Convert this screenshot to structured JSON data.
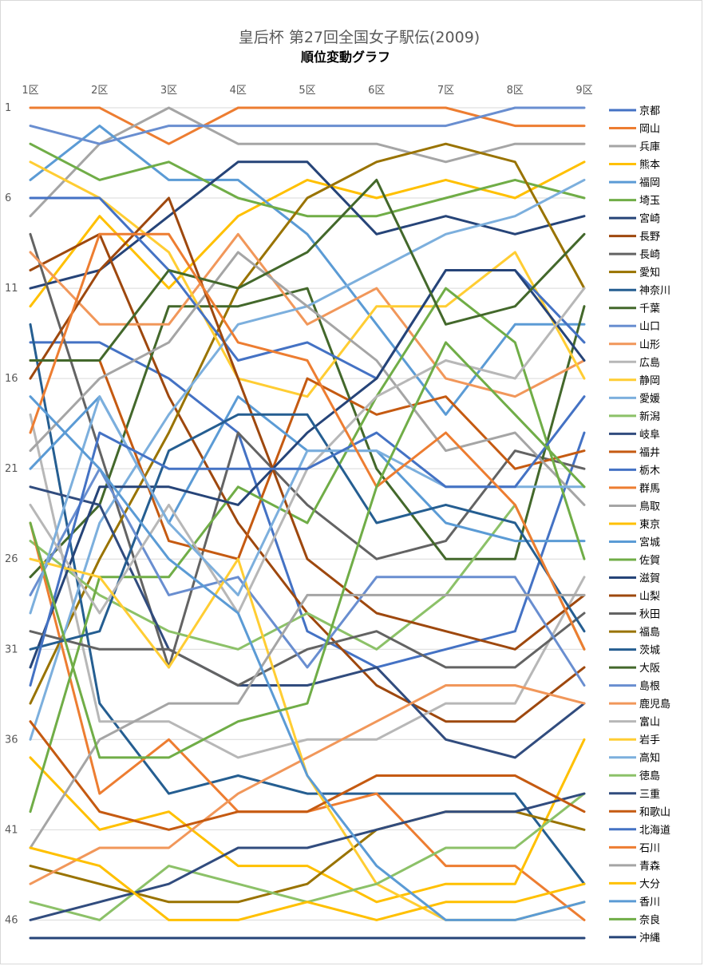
{
  "colors": [
    "#4472C4",
    "#ED7D31",
    "#A5A5A5",
    "#FFC000",
    "#5B9BD5",
    "#70AD47",
    "#264478",
    "#9E480E",
    "#636363",
    "#997300",
    "#255E91",
    "#43682B",
    "#698ED0",
    "#F1975A",
    "#B7B7B7",
    "#FFCD33",
    "#7CAFDD",
    "#8CC168",
    "#314C7E",
    "#C55A11"
  ],
  "chart_data": {
    "type": "line",
    "title": "皇后杯 第27回全国女子駅伝(2009)",
    "subtitle": "順位変動グラフ",
    "categories": [
      "1区",
      "2区",
      "3区",
      "4区",
      "5区",
      "6区",
      "7区",
      "8区",
      "9区"
    ],
    "y_ticks": [
      1,
      6,
      11,
      16,
      21,
      26,
      31,
      36,
      41,
      46
    ],
    "ylim": [
      1,
      47
    ],
    "y_reversed": true,
    "grid": true,
    "legend_position": "right",
    "series": [
      {
        "name": "京都",
        "values": [
          14,
          14,
          16,
          19,
          30,
          32,
          31,
          30,
          19
        ]
      },
      {
        "name": "岡山",
        "values": [
          1,
          1,
          3,
          1,
          1,
          1,
          1,
          2,
          2
        ]
      },
      {
        "name": "兵庫",
        "values": [
          7,
          3,
          1,
          3,
          3,
          3,
          4,
          3,
          3
        ]
      },
      {
        "name": "熊本",
        "values": [
          12,
          7,
          11,
          7,
          5,
          6,
          5,
          6,
          4
        ]
      },
      {
        "name": "福岡",
        "values": [
          5,
          2,
          5,
          5,
          8,
          13,
          18,
          13,
          13
        ]
      },
      {
        "name": "埼玉",
        "values": [
          3,
          5,
          4,
          6,
          7,
          7,
          6,
          5,
          6
        ]
      },
      {
        "name": "宮崎",
        "values": [
          11,
          10,
          7,
          4,
          4,
          8,
          7,
          8,
          7
        ]
      },
      {
        "name": "長野",
        "values": [
          10,
          8,
          17,
          24,
          29,
          33,
          35,
          35,
          32
        ]
      },
      {
        "name": "長崎",
        "values": [
          8,
          20,
          32,
          19,
          23,
          26,
          25,
          20,
          21
        ]
      },
      {
        "name": "愛知",
        "values": [
          34,
          26,
          19,
          11,
          6,
          4,
          3,
          4,
          11
        ]
      },
      {
        "name": "神奈川",
        "values": [
          13,
          34,
          39,
          38,
          39,
          39,
          39,
          39,
          44
        ]
      },
      {
        "name": "千葉",
        "values": [
          27,
          23,
          12,
          12,
          11,
          21,
          26,
          26,
          12
        ]
      },
      {
        "name": "山口",
        "values": [
          2,
          3,
          2,
          2,
          2,
          2,
          2,
          1,
          1
        ]
      },
      {
        "name": "山形",
        "values": [
          9,
          13,
          13,
          8,
          13,
          11,
          16,
          17,
          15
        ]
      },
      {
        "name": "広島",
        "values": [
          18,
          35,
          35,
          37,
          36,
          36,
          34,
          34,
          27
        ]
      },
      {
        "name": "静岡",
        "values": [
          4,
          6,
          9,
          16,
          17,
          12,
          12,
          9,
          16
        ]
      },
      {
        "name": "愛媛",
        "values": [
          36,
          24,
          18,
          13,
          12,
          10,
          8,
          7,
          5
        ]
      },
      {
        "name": "新潟",
        "values": [
          25,
          28,
          30,
          31,
          29,
          31,
          28,
          23,
          31
        ]
      },
      {
        "name": "岐阜",
        "values": [
          22,
          23,
          31,
          33,
          33,
          32,
          36,
          37,
          34
        ]
      },
      {
        "name": "福井",
        "values": [
          15,
          15,
          25,
          26,
          16,
          18,
          17,
          21,
          20
        ]
      },
      {
        "name": "栃木",
        "values": [
          6,
          6,
          10,
          15,
          14,
          16,
          10,
          10,
          14
        ]
      },
      {
        "name": "群馬",
        "values": [
          24,
          39,
          36,
          40,
          40,
          39,
          43,
          43,
          46
        ]
      },
      {
        "name": "鳥取",
        "values": [
          20,
          16,
          14,
          9,
          12,
          15,
          20,
          19,
          23
        ]
      },
      {
        "name": "東京",
        "values": [
          37,
          41,
          40,
          43,
          43,
          45,
          44,
          44,
          36
        ]
      },
      {
        "name": "宮城",
        "values": [
          21,
          17,
          24,
          17,
          20,
          20,
          24,
          25,
          25
        ]
      },
      {
        "name": "佐賀",
        "values": [
          40,
          27,
          27,
          22,
          24,
          17,
          11,
          14,
          26
        ]
      },
      {
        "name": "滋賀",
        "values": [
          32,
          22,
          22,
          23,
          19,
          16,
          10,
          10,
          15
        ]
      },
      {
        "name": "山梨",
        "values": [
          16,
          10,
          6,
          16,
          26,
          29,
          30,
          31,
          28
        ]
      },
      {
        "name": "秋田",
        "values": [
          30,
          31,
          31,
          33,
          31,
          30,
          32,
          32,
          29
        ]
      },
      {
        "name": "福島",
        "values": [
          43,
          44,
          45,
          45,
          44,
          41,
          40,
          40,
          41
        ]
      },
      {
        "name": "茨城",
        "values": [
          31,
          30,
          20,
          18,
          18,
          24,
          23,
          24,
          30
        ]
      },
      {
        "name": "大阪",
        "values": [
          15,
          15,
          10,
          11,
          9,
          5,
          13,
          12,
          8
        ]
      },
      {
        "name": "島根",
        "values": [
          28,
          21,
          28,
          27,
          32,
          27,
          27,
          27,
          33
        ]
      },
      {
        "name": "鹿児島",
        "values": [
          44,
          42,
          42,
          39,
          37,
          35,
          33,
          33,
          34
        ]
      },
      {
        "name": "富山",
        "values": [
          23,
          29,
          23,
          29,
          21,
          17,
          15,
          16,
          11
        ]
      },
      {
        "name": "岩手",
        "values": [
          26,
          27,
          32,
          26,
          38,
          44,
          46,
          46,
          45
        ]
      },
      {
        "name": "高知",
        "values": [
          29,
          17,
          24,
          28,
          20,
          20,
          22,
          22,
          22
        ]
      },
      {
        "name": "徳島",
        "values": [
          45,
          46,
          43,
          44,
          45,
          44,
          42,
          42,
          39
        ]
      },
      {
        "name": "三重",
        "values": [
          46,
          45,
          44,
          42,
          42,
          41,
          40,
          40,
          39
        ]
      },
      {
        "name": "和歌山",
        "values": [
          35,
          40,
          41,
          40,
          40,
          38,
          38,
          38,
          40
        ]
      },
      {
        "name": "北海道",
        "values": [
          33,
          19,
          21,
          21,
          21,
          19,
          22,
          22,
          17
        ]
      },
      {
        "name": "石川",
        "values": [
          19,
          8,
          8,
          14,
          15,
          22,
          19,
          23,
          31
        ]
      },
      {
        "name": "青森",
        "values": [
          42,
          36,
          34,
          34,
          28,
          28,
          28,
          28,
          28
        ]
      },
      {
        "name": "大分",
        "values": [
          42,
          43,
          46,
          46,
          45,
          46,
          45,
          45,
          44
        ]
      },
      {
        "name": "香川",
        "values": [
          17,
          21,
          26,
          29,
          38,
          43,
          46,
          46,
          45
        ]
      },
      {
        "name": "奈良",
        "values": [
          24,
          37,
          37,
          35,
          34,
          22,
          14,
          18,
          22
        ]
      },
      {
        "name": "沖縄",
        "values": [
          47,
          47,
          47,
          47,
          47,
          47,
          47,
          47,
          47
        ]
      }
    ]
  }
}
